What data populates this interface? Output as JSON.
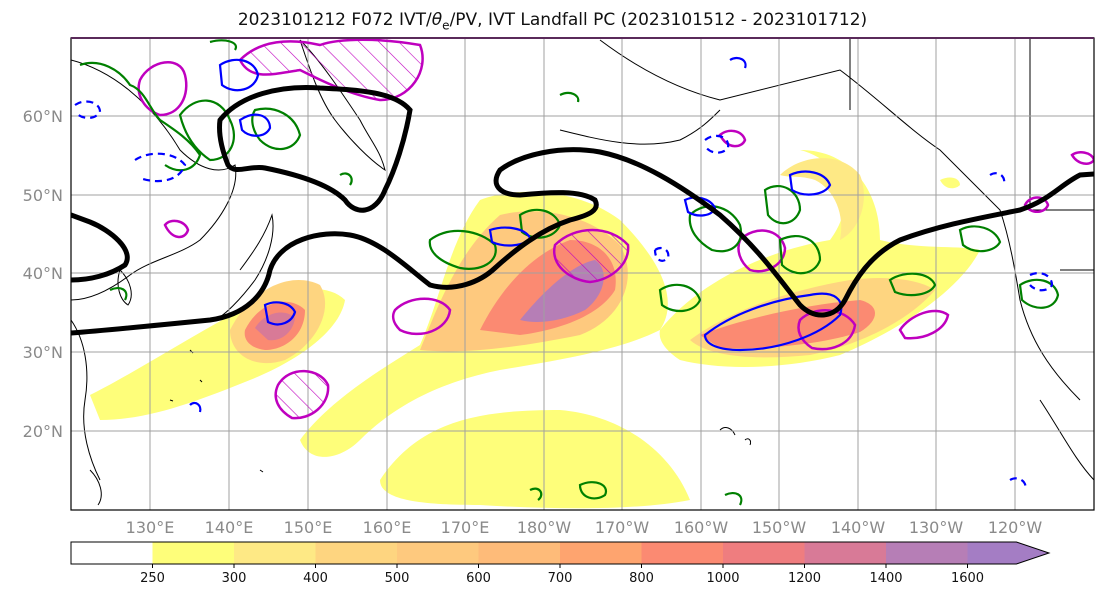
{
  "title": {
    "prefix": "2023101212 F072 IVT/",
    "theta": "θ",
    "theta_sub": "e",
    "suffix": "/PV, IVT Landfall PC (2023101512 - 2023101712)"
  },
  "map": {
    "lat_labels": [
      "60°N",
      "50°N",
      "40°N",
      "30°N",
      "20°N"
    ],
    "lon_labels": [
      "130°E",
      "140°E",
      "150°E",
      "160°E",
      "170°E",
      "180°W",
      "170°W",
      "160°W",
      "150°W",
      "140°W",
      "130°W",
      "120°W"
    ],
    "colors": {
      "jet_contour": "#000000",
      "theta_contour": "#008000",
      "pv_positive": "#0000ff",
      "pv_dashed": "#0000ff",
      "landfall_pc": "#bf00bf",
      "coastline": "#000000",
      "grid": "#a0a0a0"
    }
  },
  "colorbar": {
    "levels": [
      "250",
      "300",
      "400",
      "500",
      "600",
      "700",
      "800",
      "1000",
      "1200",
      "1400",
      "1600"
    ],
    "colors": [
      "#ffffff",
      "#fefe7a",
      "#fee985",
      "#fed580",
      "#fec97e",
      "#febb79",
      "#fea46f",
      "#fb8a72",
      "#ef7d7f",
      "#d87a97",
      "#b67eb6",
      "#a47dc4"
    ]
  }
}
